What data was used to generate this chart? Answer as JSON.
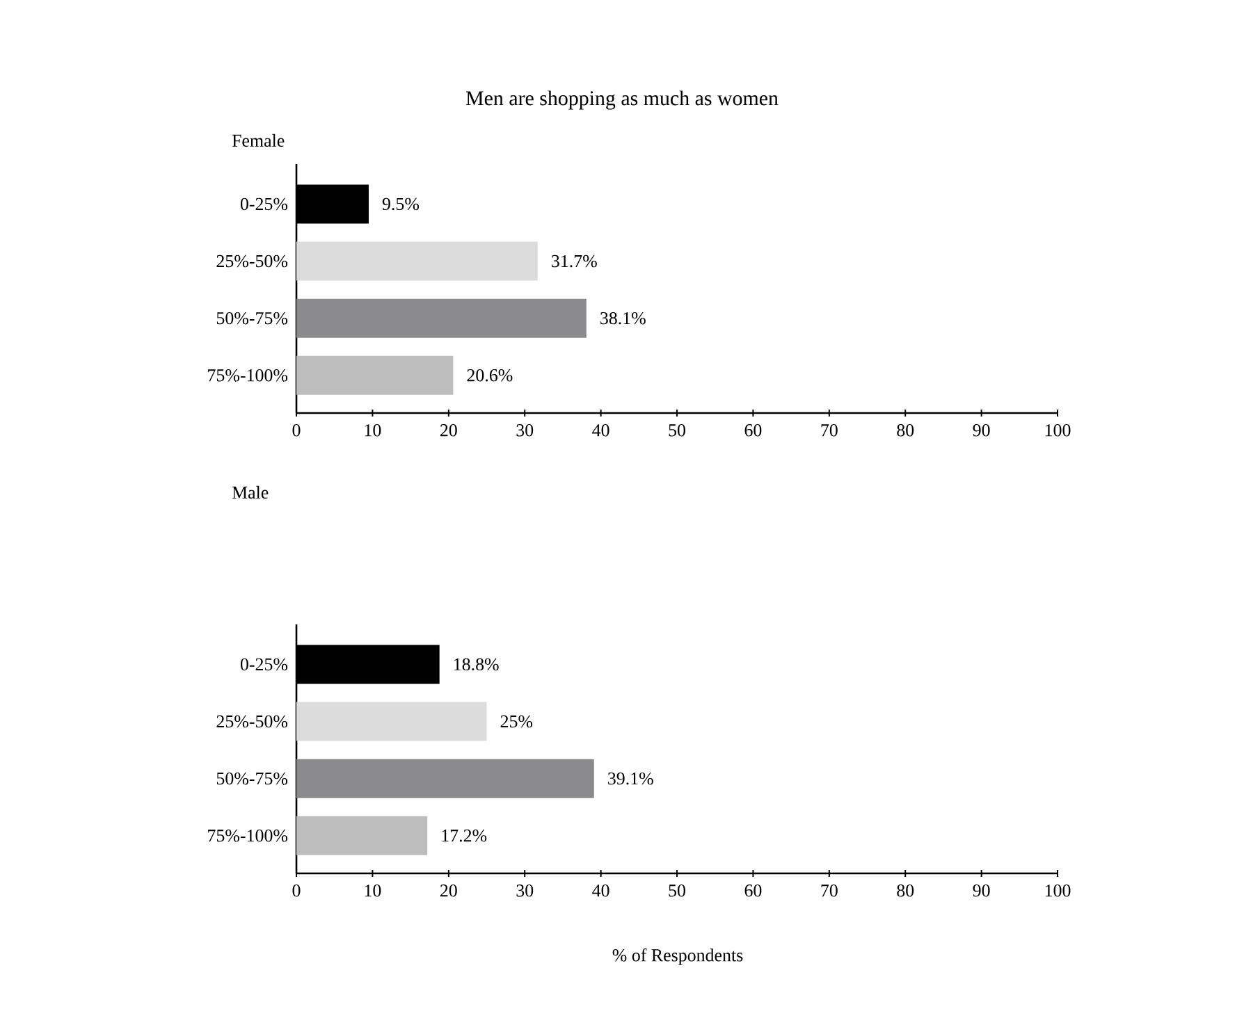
{
  "chart_data": [
    {
      "type": "bar",
      "orientation": "horizontal",
      "title": "Men are shopping as much as women",
      "subtitle": "Female",
      "categories": [
        "0-25%",
        "25%-50%",
        "50%-75%",
        "75%-100%"
      ],
      "values": [
        9.5,
        31.7,
        38.1,
        20.6
      ],
      "value_labels": [
        "9.5%",
        "31.7%",
        "38.1%",
        "20.6%"
      ],
      "colors": [
        "#000000",
        "#dcdcdd",
        "#8b8b8d",
        "#bdbdbe"
      ],
      "xlim": [
        0,
        100
      ],
      "xticks": [
        0,
        10,
        20,
        30,
        40,
        50,
        60,
        70,
        80,
        90,
        100
      ]
    },
    {
      "type": "bar",
      "orientation": "horizontal",
      "subtitle": "Male",
      "xlabel": "% of Respondents",
      "categories": [
        "0-25%",
        "25%-50%",
        "50%-75%",
        "75%-100%"
      ],
      "values": [
        18.8,
        25,
        39.1,
        17.2
      ],
      "value_labels": [
        "18.8%",
        "25%",
        "39.1%",
        "17.2%"
      ],
      "colors": [
        "#000000",
        "#dcdcdd",
        "#8b8b8d",
        "#bdbdbe"
      ],
      "xlim": [
        0,
        100
      ],
      "xticks": [
        0,
        10,
        20,
        30,
        40,
        50,
        60,
        70,
        80,
        90,
        100
      ]
    }
  ]
}
